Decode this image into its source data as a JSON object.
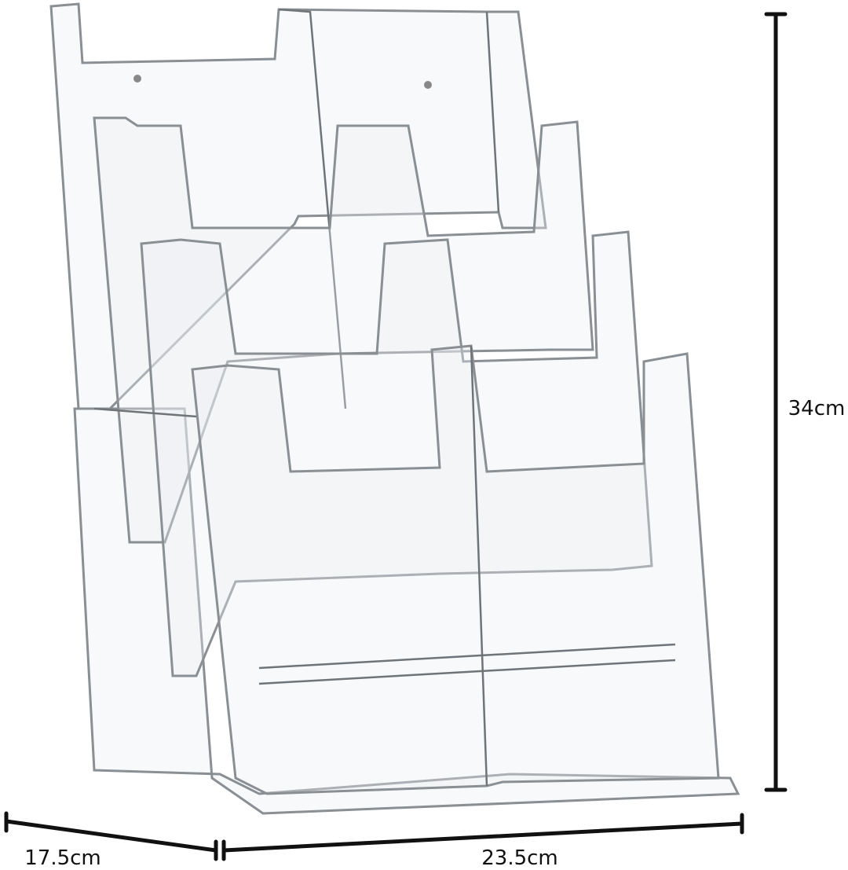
{
  "dimensions": {
    "height": "34cm",
    "depth": "17.5cm",
    "width": "23.5cm"
  }
}
